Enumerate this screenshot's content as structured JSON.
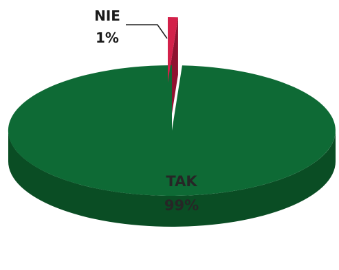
{
  "chart_data": {
    "type": "pie",
    "style": "3d",
    "slices": [
      {
        "label": "TAK",
        "value": 99,
        "value_label": "99%",
        "color": "#0e6a35",
        "side_color": "#0a4d24"
      },
      {
        "label": "NIE",
        "value": 1,
        "value_label": "1%",
        "color": "#d3214a",
        "side_color": "#8f1230"
      }
    ]
  }
}
